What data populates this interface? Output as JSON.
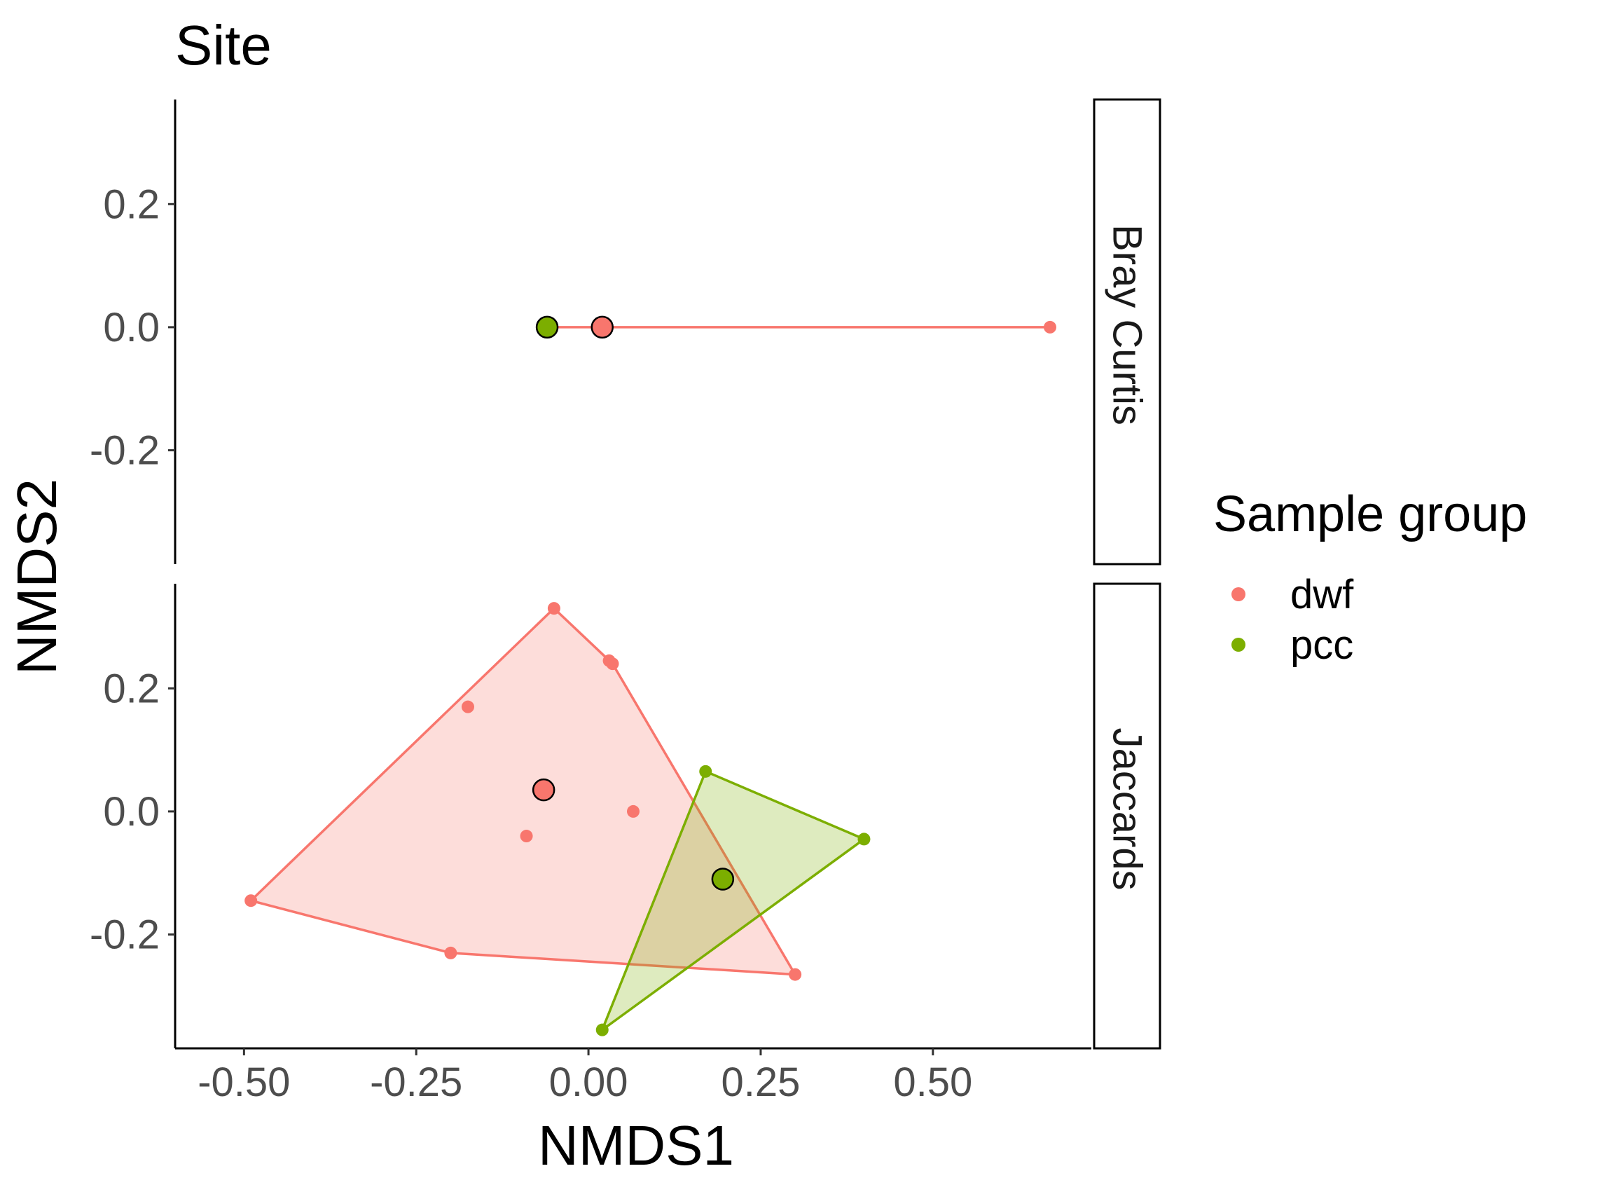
{
  "chart_data": {
    "type": "scatter",
    "title": "Site",
    "xlabel": "NMDS1",
    "ylabel": "NMDS2",
    "xlim": [
      -0.6,
      0.73
    ],
    "ylim": [
      -0.385,
      0.37
    ],
    "x_ticks": [
      -0.5,
      -0.25,
      0.0,
      0.25,
      0.5
    ],
    "x_tick_labels": [
      "-0.50",
      "-0.25",
      "0.00",
      "0.25",
      "0.50"
    ],
    "y_ticks": [
      -0.2,
      0.0,
      0.2
    ],
    "y_tick_labels": [
      "-0.2",
      "0.0",
      "0.2"
    ],
    "grid": false,
    "legend": {
      "title": "Sample group",
      "position": "right",
      "entries": [
        {
          "label": "dwf",
          "color": "#F8766D"
        },
        {
          "label": "pcc",
          "color": "#7CAE00"
        }
      ]
    },
    "colors": {
      "dwf": "#F8766D",
      "pcc": "#7CAE00"
    },
    "facets": [
      {
        "label": "Bray Curtis",
        "series": [
          {
            "group": "dwf",
            "points": [
              [
                0.67,
                0.0
              ]
            ],
            "hull": [],
            "centroid": [
              0.02,
              0.0
            ]
          },
          {
            "group": "pcc",
            "points": [],
            "hull": [],
            "centroid": [
              -0.06,
              0.0
            ]
          }
        ],
        "segments": [
          {
            "group": "dwf",
            "from": [
              -0.06,
              0.0
            ],
            "to": [
              0.67,
              0.0
            ]
          }
        ]
      },
      {
        "label": "Jaccards",
        "series": [
          {
            "group": "dwf",
            "points": [
              [
                -0.05,
                0.33
              ],
              [
                0.03,
                0.245
              ],
              [
                0.035,
                0.24
              ],
              [
                -0.175,
                0.17
              ],
              [
                0.065,
                0.0
              ],
              [
                -0.09,
                -0.04
              ],
              [
                -0.49,
                -0.145
              ],
              [
                -0.2,
                -0.23
              ],
              [
                0.3,
                -0.265
              ]
            ],
            "hull": [
              [
                -0.05,
                0.33
              ],
              [
                0.035,
                0.24
              ],
              [
                0.3,
                -0.265
              ],
              [
                -0.2,
                -0.23
              ],
              [
                -0.49,
                -0.145
              ]
            ],
            "centroid": [
              -0.065,
              0.035
            ]
          },
          {
            "group": "pcc",
            "points": [
              [
                0.17,
                0.065
              ],
              [
                0.4,
                -0.045
              ],
              [
                0.02,
                -0.355
              ]
            ],
            "hull": [
              [
                0.17,
                0.065
              ],
              [
                0.4,
                -0.045
              ],
              [
                0.02,
                -0.355
              ]
            ],
            "centroid": [
              0.195,
              -0.11
            ]
          }
        ],
        "segments": []
      }
    ]
  }
}
